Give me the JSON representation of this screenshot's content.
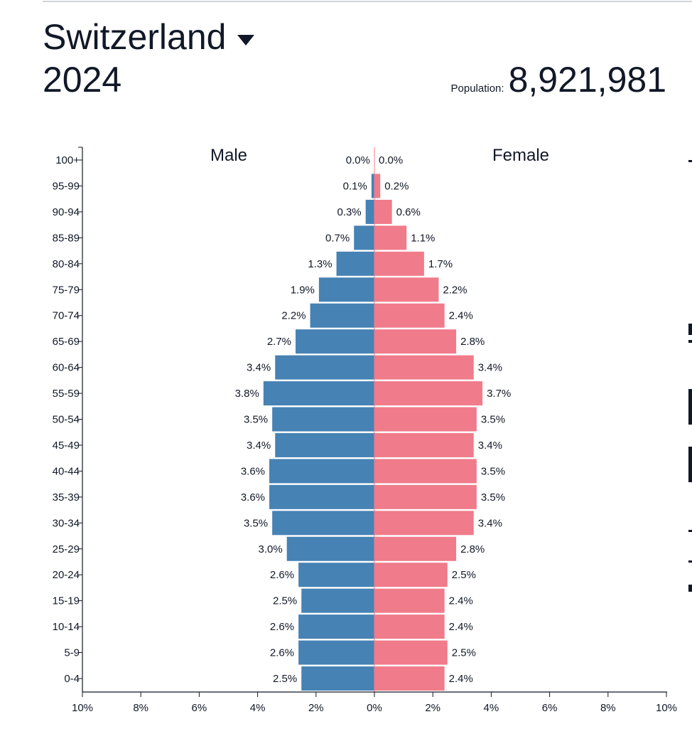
{
  "header": {
    "country": "Switzerland",
    "year": "2024",
    "population_label": "Population:",
    "population_value": "8,921,981"
  },
  "chart_data": {
    "type": "bar",
    "orientation": "horizontal",
    "layout": "population-pyramid",
    "categories": [
      "100+",
      "95-99",
      "90-94",
      "85-89",
      "80-84",
      "75-79",
      "70-74",
      "65-69",
      "60-64",
      "55-59",
      "50-54",
      "45-49",
      "40-44",
      "35-39",
      "30-34",
      "25-29",
      "20-24",
      "15-19",
      "10-14",
      "5-9",
      "0-4"
    ],
    "series": [
      {
        "name": "Male",
        "color": "#4682b4",
        "values": [
          0.0,
          0.1,
          0.3,
          0.7,
          1.3,
          1.9,
          2.2,
          2.7,
          3.4,
          3.8,
          3.5,
          3.4,
          3.6,
          3.6,
          3.5,
          3.0,
          2.6,
          2.5,
          2.6,
          2.6,
          2.5
        ],
        "labels": [
          "0.0%",
          "0.1%",
          "0.3%",
          "0.7%",
          "1.3%",
          "1.9%",
          "2.2%",
          "2.7%",
          "3.4%",
          "3.8%",
          "3.5%",
          "3.4%",
          "3.6%",
          "3.6%",
          "3.5%",
          "3.0%",
          "2.6%",
          "2.5%",
          "2.6%",
          "2.6%",
          "2.5%"
        ]
      },
      {
        "name": "Female",
        "color": "#f07b8a",
        "values": [
          0.0,
          0.2,
          0.6,
          1.1,
          1.7,
          2.2,
          2.4,
          2.8,
          3.4,
          3.7,
          3.5,
          3.4,
          3.5,
          3.5,
          3.4,
          2.8,
          2.5,
          2.4,
          2.4,
          2.5,
          2.4
        ],
        "labels": [
          "0.0%",
          "0.2%",
          "0.6%",
          "1.1%",
          "1.7%",
          "2.2%",
          "2.4%",
          "2.8%",
          "3.4%",
          "3.7%",
          "3.5%",
          "3.4%",
          "3.5%",
          "3.5%",
          "3.4%",
          "2.8%",
          "2.5%",
          "2.4%",
          "2.4%",
          "2.5%",
          "2.4%"
        ]
      }
    ],
    "x_range": [
      -10,
      10
    ],
    "x_ticks": [
      -10,
      -8,
      -6,
      -4,
      -2,
      0,
      2,
      4,
      6,
      8,
      10
    ],
    "x_tick_labels": [
      "10%",
      "8%",
      "6%",
      "4%",
      "2%",
      "0%",
      "2%",
      "4%",
      "6%",
      "8%",
      "10%"
    ],
    "grid": false
  }
}
